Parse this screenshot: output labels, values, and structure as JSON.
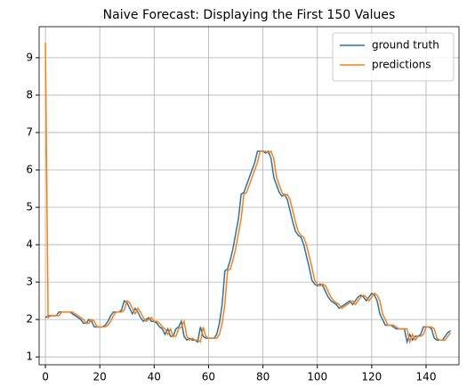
{
  "chart_data": {
    "type": "line",
    "title": "Naive Forecast: Displaying the First 150 Values",
    "x": [
      0,
      1,
      2,
      3,
      4,
      5,
      6,
      7,
      8,
      9,
      10,
      11,
      12,
      13,
      14,
      15,
      16,
      17,
      18,
      19,
      20,
      21,
      22,
      23,
      24,
      25,
      26,
      27,
      28,
      29,
      30,
      31,
      32,
      33,
      34,
      35,
      36,
      37,
      38,
      39,
      40,
      41,
      42,
      43,
      44,
      45,
      46,
      47,
      48,
      49,
      50,
      51,
      52,
      53,
      54,
      55,
      56,
      57,
      58,
      59,
      60,
      61,
      62,
      63,
      64,
      65,
      66,
      67,
      68,
      69,
      70,
      71,
      72,
      73,
      74,
      75,
      76,
      77,
      78,
      79,
      80,
      81,
      82,
      83,
      84,
      85,
      86,
      87,
      88,
      89,
      90,
      91,
      92,
      93,
      94,
      95,
      96,
      97,
      98,
      99,
      100,
      101,
      102,
      103,
      104,
      105,
      106,
      107,
      108,
      109,
      110,
      111,
      112,
      113,
      114,
      115,
      116,
      117,
      118,
      119,
      120,
      121,
      122,
      123,
      124,
      125,
      126,
      127,
      128,
      129,
      130,
      131,
      132,
      133,
      134,
      135,
      136,
      137,
      138,
      139,
      140,
      141,
      142,
      143,
      144,
      145,
      146,
      147,
      148,
      149
    ],
    "series": [
      {
        "name": "ground truth",
        "color": "#1f77b4",
        "values": [
          2.05,
          2.1,
          2.1,
          2.1,
          2.1,
          2.2,
          2.2,
          2.2,
          2.2,
          2.2,
          2.15,
          2.1,
          2.05,
          2.0,
          1.9,
          1.9,
          2.0,
          1.95,
          1.8,
          1.8,
          1.8,
          1.8,
          1.85,
          1.95,
          2.1,
          2.2,
          2.2,
          2.2,
          2.25,
          2.5,
          2.45,
          2.3,
          2.15,
          2.3,
          2.2,
          2.05,
          1.95,
          2.0,
          2.05,
          1.95,
          1.95,
          1.9,
          1.8,
          1.75,
          1.6,
          1.75,
          1.55,
          1.55,
          1.75,
          1.8,
          1.95,
          1.55,
          1.45,
          1.5,
          1.45,
          1.45,
          1.4,
          1.8,
          1.55,
          1.5,
          1.5,
          1.5,
          1.5,
          1.6,
          1.9,
          2.4,
          3.3,
          3.35,
          3.6,
          3.9,
          4.3,
          4.7,
          5.35,
          5.4,
          5.6,
          5.8,
          6.0,
          6.2,
          6.5,
          6.5,
          6.5,
          6.45,
          6.5,
          6.3,
          5.8,
          5.6,
          5.4,
          5.3,
          5.35,
          5.2,
          4.9,
          4.6,
          4.35,
          4.25,
          4.2,
          4.0,
          3.7,
          3.4,
          3.05,
          2.95,
          2.9,
          2.95,
          2.9,
          2.75,
          2.6,
          2.5,
          2.45,
          2.4,
          2.3,
          2.35,
          2.4,
          2.45,
          2.5,
          2.4,
          2.5,
          2.6,
          2.65,
          2.6,
          2.5,
          2.6,
          2.7,
          2.65,
          2.5,
          2.15,
          2.0,
          1.85,
          1.85,
          1.85,
          1.8,
          1.75,
          1.75,
          1.75,
          1.75,
          1.4,
          1.6,
          1.45,
          1.55,
          1.55,
          1.6,
          1.8,
          1.8,
          1.8,
          1.75,
          1.5,
          1.45,
          1.45,
          1.45,
          1.55,
          1.65,
          1.7
        ]
      },
      {
        "name": "predictions",
        "color": "#ff7f0e",
        "values": [
          9.4,
          2.05,
          2.1,
          2.1,
          2.1,
          2.1,
          2.2,
          2.2,
          2.2,
          2.2,
          2.2,
          2.15,
          2.1,
          2.05,
          2.0,
          1.9,
          1.9,
          2.0,
          1.95,
          1.8,
          1.8,
          1.8,
          1.8,
          1.85,
          1.95,
          2.1,
          2.2,
          2.2,
          2.2,
          2.25,
          2.5,
          2.45,
          2.3,
          2.15,
          2.3,
          2.2,
          2.05,
          1.95,
          2.0,
          2.05,
          1.95,
          1.95,
          1.9,
          1.8,
          1.75,
          1.6,
          1.75,
          1.55,
          1.55,
          1.75,
          1.8,
          1.95,
          1.55,
          1.45,
          1.5,
          1.45,
          1.45,
          1.4,
          1.8,
          1.55,
          1.5,
          1.5,
          1.5,
          1.5,
          1.6,
          1.9,
          2.4,
          3.3,
          3.35,
          3.6,
          3.9,
          4.3,
          4.7,
          5.35,
          5.4,
          5.6,
          5.8,
          6.0,
          6.2,
          6.5,
          6.5,
          6.5,
          6.45,
          6.5,
          6.3,
          5.8,
          5.6,
          5.4,
          5.3,
          5.35,
          5.2,
          4.9,
          4.6,
          4.35,
          4.25,
          4.2,
          4.0,
          3.7,
          3.4,
          3.05,
          2.95,
          2.9,
          2.95,
          2.9,
          2.75,
          2.6,
          2.5,
          2.45,
          2.4,
          2.3,
          2.35,
          2.4,
          2.45,
          2.5,
          2.4,
          2.5,
          2.6,
          2.65,
          2.6,
          2.5,
          2.6,
          2.7,
          2.65,
          2.5,
          2.15,
          2.0,
          1.85,
          1.85,
          1.85,
          1.8,
          1.75,
          1.75,
          1.75,
          1.75,
          1.4,
          1.6,
          1.45,
          1.55,
          1.55,
          1.6,
          1.8,
          1.8,
          1.8,
          1.75,
          1.5,
          1.45,
          1.45,
          1.45,
          1.55,
          1.65
        ]
      }
    ],
    "xlim": [
      -2.3,
      152.1
    ],
    "xticks": [
      0,
      20,
      40,
      60,
      80,
      100,
      120,
      140
    ],
    "ylim": [
      0.79,
      9.83
    ],
    "yticks": [
      1,
      2,
      3,
      4,
      5,
      6,
      7,
      8,
      9
    ],
    "grid": true,
    "legend": "upper right"
  }
}
